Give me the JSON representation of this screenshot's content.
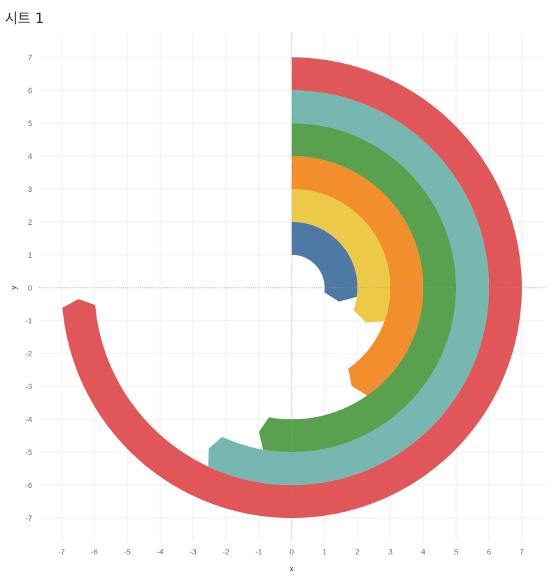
{
  "sheet": {
    "title": "시트 1"
  },
  "chart_data": {
    "type": "area",
    "subtype": "radial-arc-bands",
    "xlabel": "x",
    "ylabel": "y",
    "xlim": [
      -7.7,
      7.7
    ],
    "ylim": [
      -7.8,
      7.8
    ],
    "xticks": [
      -7,
      -6,
      -5,
      -4,
      -3,
      -2,
      -1,
      0,
      1,
      2,
      3,
      4,
      5,
      6,
      7
    ],
    "yticks": [
      7,
      6,
      5,
      4,
      3,
      2,
      1,
      0,
      -1,
      -2,
      -3,
      -4,
      -5,
      -6,
      -7
    ],
    "grid": true,
    "zero_lines": true,
    "series": [
      {
        "inner_radius": 6,
        "outer_radius": 7,
        "sweep_degrees": 265,
        "color": "#E15759"
      },
      {
        "inner_radius": 5,
        "outer_radius": 6,
        "sweep_degrees": 205,
        "color": "#76B7B2"
      },
      {
        "inner_radius": 4,
        "outer_radius": 5,
        "sweep_degrees": 190,
        "color": "#59A14F"
      },
      {
        "inner_radius": 3,
        "outer_radius": 4,
        "sweep_degrees": 145,
        "color": "#F28E2B"
      },
      {
        "inner_radius": 2,
        "outer_radius": 3,
        "sweep_degrees": 110,
        "color": "#EDC948"
      },
      {
        "inner_radius": 1,
        "outer_radius": 2,
        "sweep_degrees": 98,
        "color": "#4E79A7"
      }
    ]
  }
}
